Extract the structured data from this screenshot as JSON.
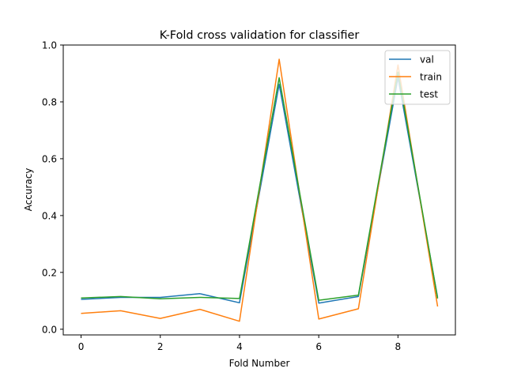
{
  "chart_data": {
    "type": "line",
    "title": "K-Fold cross validation for classifier",
    "xlabel": "Fold Number",
    "ylabel": "Accuracy",
    "x": [
      0,
      1,
      2,
      3,
      4,
      5,
      6,
      7,
      8,
      9
    ],
    "xlim": [
      -0.45,
      9.45
    ],
    "ylim": [
      -0.02,
      1.0
    ],
    "xticks": [
      0,
      2,
      4,
      6,
      8
    ],
    "xtick_labels": [
      "0",
      "2",
      "4",
      "6",
      "8"
    ],
    "yticks": [
      0.0,
      0.2,
      0.4,
      0.6,
      0.8,
      1.0
    ],
    "ytick_labels": [
      "0.0",
      "0.2",
      "0.4",
      "0.6",
      "0.8",
      "1.0"
    ],
    "grid": false,
    "legend_position": "top-right",
    "series": [
      {
        "name": "val",
        "color": "#1f77b4",
        "values": [
          0.105,
          0.112,
          0.112,
          0.125,
          0.093,
          0.862,
          0.092,
          0.115,
          0.885,
          0.112
        ]
      },
      {
        "name": "train",
        "color": "#ff7f0e",
        "values": [
          0.056,
          0.065,
          0.038,
          0.07,
          0.028,
          0.95,
          0.036,
          0.072,
          0.93,
          0.08
        ]
      },
      {
        "name": "test",
        "color": "#2ca02c",
        "values": [
          0.11,
          0.115,
          0.107,
          0.112,
          0.108,
          0.885,
          0.102,
          0.12,
          0.905,
          0.108
        ]
      }
    ]
  }
}
